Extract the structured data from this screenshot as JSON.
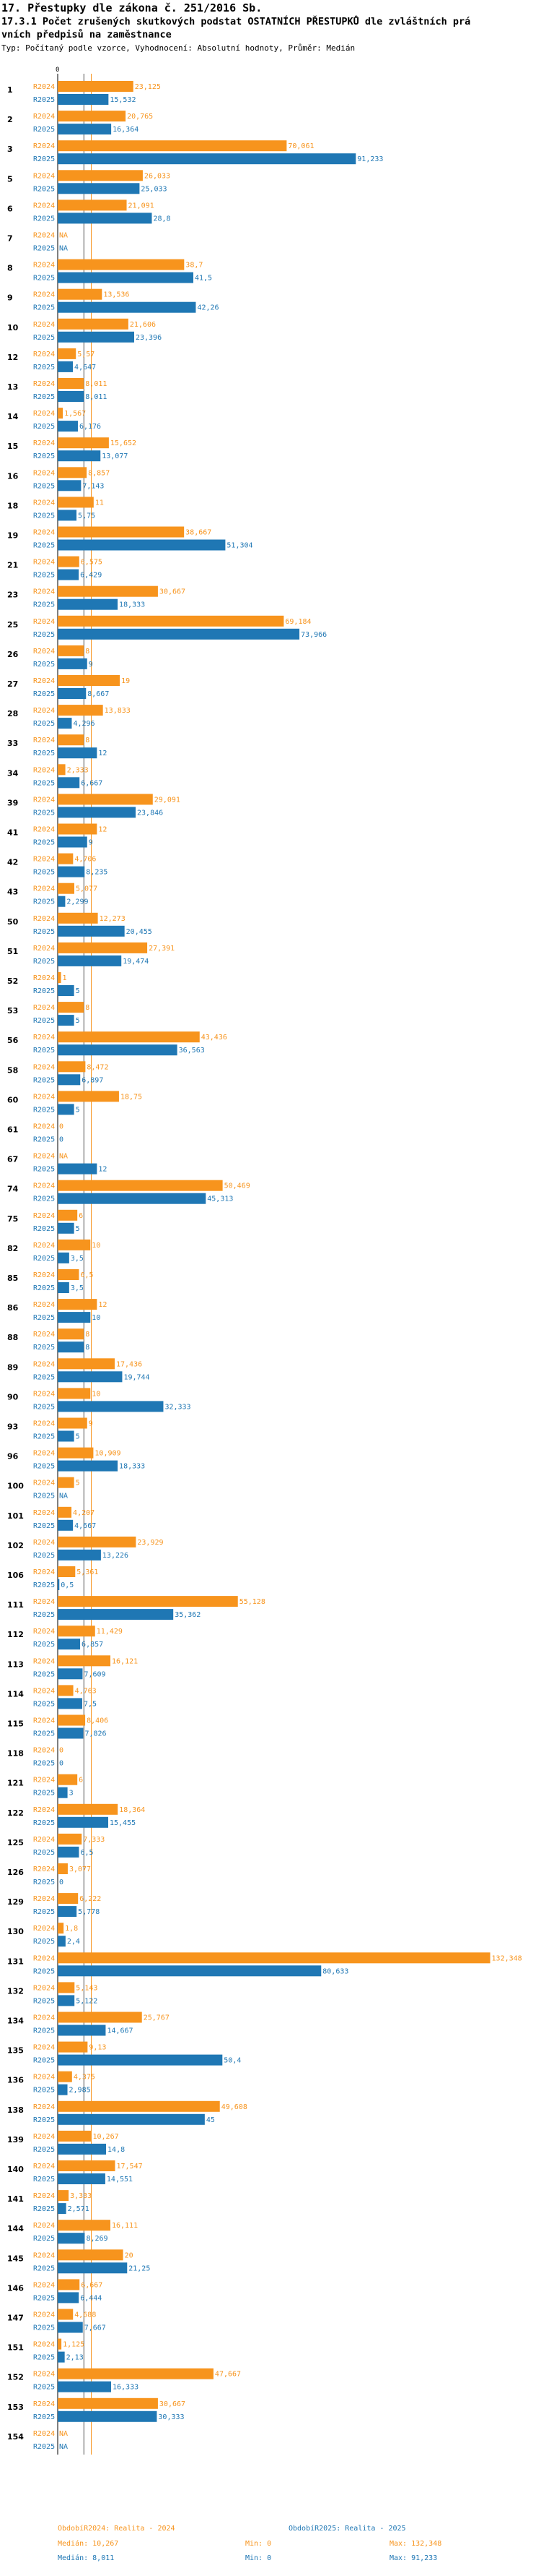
{
  "header": {
    "line1": "17. Přestupky dle zákona č. 251/2016 Sb.",
    "line2": "17.3.1 Počet zrušených skutkových podstat OSTATNÍCH PŘESTUPKŮ dle zvláštních prá",
    "line3": "vních předpisů na zaměstnance",
    "line4": "Typ: Počítaný podle vzorce, Vyhodnocení: Absolutní hodnoty, Průměr: Medián"
  },
  "colors": {
    "r2024": "#f7941d",
    "r2025": "#1f77b4"
  },
  "chart_data": {
    "type": "bar",
    "orientation": "horizontal",
    "series_labels": [
      "R2024",
      "R2025"
    ],
    "axis": {
      "min": 0,
      "max": 132.348,
      "ticks": [
        0
      ]
    },
    "reference_lines": {
      "median_2024": 10.267,
      "median_2025": 8.011
    },
    "categories": [
      {
        "id": "1",
        "r2024": 23.125,
        "r2025": 15.532,
        "t2024": "23,125",
        "t2025": "15,532"
      },
      {
        "id": "2",
        "r2024": 20.765,
        "r2025": 16.364,
        "t2024": "20,765",
        "t2025": "16,364"
      },
      {
        "id": "3",
        "r2024": 70.061,
        "r2025": 91.233,
        "t2024": "70,061",
        "t2025": "91,233"
      },
      {
        "id": "5",
        "r2024": 26.033,
        "r2025": 25.033,
        "t2024": "26,033",
        "t2025": "25,033"
      },
      {
        "id": "6",
        "r2024": 21.091,
        "r2025": 28.8,
        "t2024": "21,091",
        "t2025": "28,8"
      },
      {
        "id": "7",
        "r2024": null,
        "r2025": null,
        "t2024": "NA",
        "t2025": "NA"
      },
      {
        "id": "8",
        "r2024": 38.7,
        "r2025": 41.5,
        "t2024": "38,7",
        "t2025": "41,5"
      },
      {
        "id": "9",
        "r2024": 13.536,
        "r2025": 42.26,
        "t2024": "13,536",
        "t2025": "42,26"
      },
      {
        "id": "10",
        "r2024": 21.606,
        "r2025": 23.396,
        "t2024": "21,606",
        "t2025": "23,396"
      },
      {
        "id": "12",
        "r2024": 5.57,
        "r2025": 4.647,
        "t2024": "5,57",
        "t2025": "4,647"
      },
      {
        "id": "13",
        "r2024": 8.011,
        "r2025": 8.011,
        "t2024": "8,011",
        "t2025": "8,011"
      },
      {
        "id": "14",
        "r2024": 1.567,
        "r2025": 6.176,
        "t2024": "1,567",
        "t2025": "6,176"
      },
      {
        "id": "15",
        "r2024": 15.652,
        "r2025": 13.077,
        "t2024": "15,652",
        "t2025": "13,077"
      },
      {
        "id": "16",
        "r2024": 8.857,
        "r2025": 7.143,
        "t2024": "8,857",
        "t2025": "7,143"
      },
      {
        "id": "18",
        "r2024": 11,
        "r2025": 5.75,
        "t2024": "11",
        "t2025": "5,75"
      },
      {
        "id": "19",
        "r2024": 38.667,
        "r2025": 51.304,
        "t2024": "38,667",
        "t2025": "51,304"
      },
      {
        "id": "21",
        "r2024": 6.575,
        "r2025": 6.429,
        "t2024": "6,575",
        "t2025": "6,429"
      },
      {
        "id": "23",
        "r2024": 30.667,
        "r2025": 18.333,
        "t2024": "30,667",
        "t2025": "18,333"
      },
      {
        "id": "25",
        "r2024": 69.184,
        "r2025": 73.966,
        "t2024": "69,184",
        "t2025": "73,966"
      },
      {
        "id": "26",
        "r2024": 8,
        "r2025": 9,
        "t2024": "8",
        "t2025": "9"
      },
      {
        "id": "27",
        "r2024": 19,
        "r2025": 8.667,
        "t2024": "19",
        "t2025": "8,667"
      },
      {
        "id": "28",
        "r2024": 13.833,
        "r2025": 4.296,
        "t2024": "13,833",
        "t2025": "4,296"
      },
      {
        "id": "33",
        "r2024": 8,
        "r2025": 12,
        "t2024": "8",
        "t2025": "12"
      },
      {
        "id": "34",
        "r2024": 2.333,
        "r2025": 6.667,
        "t2024": "2,333",
        "t2025": "6,667"
      },
      {
        "id": "39",
        "r2024": 29.091,
        "r2025": 23.846,
        "t2024": "29,091",
        "t2025": "23,846"
      },
      {
        "id": "41",
        "r2024": 12,
        "r2025": 9,
        "t2024": "12",
        "t2025": "9"
      },
      {
        "id": "42",
        "r2024": 4.706,
        "r2025": 8.235,
        "t2024": "4,706",
        "t2025": "8,235"
      },
      {
        "id": "43",
        "r2024": 5.077,
        "r2025": 2.299,
        "t2024": "5,077",
        "t2025": "2,299"
      },
      {
        "id": "50",
        "r2024": 12.273,
        "r2025": 20.455,
        "t2024": "12,273",
        "t2025": "20,455"
      },
      {
        "id": "51",
        "r2024": 27.391,
        "r2025": 19.474,
        "t2024": "27,391",
        "t2025": "19,474"
      },
      {
        "id": "52",
        "r2024": 1,
        "r2025": 5,
        "t2024": "1",
        "t2025": "5"
      },
      {
        "id": "53",
        "r2024": 8,
        "r2025": 5,
        "t2024": "8",
        "t2025": "5"
      },
      {
        "id": "56",
        "r2024": 43.436,
        "r2025": 36.563,
        "t2024": "43,436",
        "t2025": "36,563"
      },
      {
        "id": "58",
        "r2024": 8.472,
        "r2025": 6.897,
        "t2024": "8,472",
        "t2025": "6,897"
      },
      {
        "id": "60",
        "r2024": 18.75,
        "r2025": 5,
        "t2024": "18,75",
        "t2025": "5"
      },
      {
        "id": "61",
        "r2024": 0,
        "r2025": 0,
        "t2024": "0",
        "t2025": "0"
      },
      {
        "id": "67",
        "r2024": null,
        "r2025": 12,
        "t2024": "NA",
        "t2025": "12"
      },
      {
        "id": "74",
        "r2024": 50.469,
        "r2025": 45.313,
        "t2024": "50,469",
        "t2025": "45,313"
      },
      {
        "id": "75",
        "r2024": 6,
        "r2025": 5,
        "t2024": "6",
        "t2025": "5"
      },
      {
        "id": "82",
        "r2024": 10,
        "r2025": 3.5,
        "t2024": "10",
        "t2025": "3,5"
      },
      {
        "id": "85",
        "r2024": 6.5,
        "r2025": 3.5,
        "t2024": "6,5",
        "t2025": "3,5"
      },
      {
        "id": "86",
        "r2024": 12,
        "r2025": 10,
        "t2024": "12",
        "t2025": "10"
      },
      {
        "id": "88",
        "r2024": 8,
        "r2025": 8,
        "t2024": "8",
        "t2025": "8"
      },
      {
        "id": "89",
        "r2024": 17.436,
        "r2025": 19.744,
        "t2024": "17,436",
        "t2025": "19,744"
      },
      {
        "id": "90",
        "r2024": 10,
        "r2025": 32.333,
        "t2024": "10",
        "t2025": "32,333"
      },
      {
        "id": "93",
        "r2024": 9,
        "r2025": 5,
        "t2024": "9",
        "t2025": "5"
      },
      {
        "id": "96",
        "r2024": 10.909,
        "r2025": 18.333,
        "t2024": "10,909",
        "t2025": "18,333"
      },
      {
        "id": "100",
        "r2024": 5,
        "r2025": null,
        "t2024": "5",
        "t2025": "NA"
      },
      {
        "id": "101",
        "r2024": 4.207,
        "r2025": 4.667,
        "t2024": "4,207",
        "t2025": "4,667"
      },
      {
        "id": "102",
        "r2024": 23.929,
        "r2025": 13.226,
        "t2024": "23,929",
        "t2025": "13,226"
      },
      {
        "id": "106",
        "r2024": 5.361,
        "r2025": 0.5,
        "t2024": "5,361",
        "t2025": "0,5"
      },
      {
        "id": "111",
        "r2024": 55.128,
        "r2025": 35.362,
        "t2024": "55,128",
        "t2025": "35,362"
      },
      {
        "id": "112",
        "r2024": 11.429,
        "r2025": 6.857,
        "t2024": "11,429",
        "t2025": "6,857"
      },
      {
        "id": "113",
        "r2024": 16.121,
        "r2025": 7.609,
        "t2024": "16,121",
        "t2025": "7,609"
      },
      {
        "id": "114",
        "r2024": 4.763,
        "r2025": 7.5,
        "t2024": "4,763",
        "t2025": "7,5"
      },
      {
        "id": "115",
        "r2024": 8.406,
        "r2025": 7.826,
        "t2024": "8,406",
        "t2025": "7,826"
      },
      {
        "id": "118",
        "r2024": 0,
        "r2025": 0,
        "t2024": "0",
        "t2025": "0"
      },
      {
        "id": "121",
        "r2024": 6,
        "r2025": 3,
        "t2024": "6",
        "t2025": "3"
      },
      {
        "id": "122",
        "r2024": 18.364,
        "r2025": 15.455,
        "t2024": "18,364",
        "t2025": "15,455"
      },
      {
        "id": "125",
        "r2024": 7.333,
        "r2025": 6.5,
        "t2024": "7,333",
        "t2025": "6,5"
      },
      {
        "id": "126",
        "r2024": 3.077,
        "r2025": 0,
        "t2024": "3,077",
        "t2025": "0"
      },
      {
        "id": "129",
        "r2024": 6.222,
        "r2025": 5.778,
        "t2024": "6,222",
        "t2025": "5,778"
      },
      {
        "id": "130",
        "r2024": 1.8,
        "r2025": 2.4,
        "t2024": "1,8",
        "t2025": "2,4"
      },
      {
        "id": "131",
        "r2024": 132.348,
        "r2025": 80.633,
        "t2024": "132,348",
        "t2025": "80,633"
      },
      {
        "id": "132",
        "r2024": 5.143,
        "r2025": 5.122,
        "t2024": "5,143",
        "t2025": "5,122"
      },
      {
        "id": "134",
        "r2024": 25.767,
        "r2025": 14.667,
        "t2024": "25,767",
        "t2025": "14,667"
      },
      {
        "id": "135",
        "r2024": 9.13,
        "r2025": 50.4,
        "t2024": "9,13",
        "t2025": "50,4"
      },
      {
        "id": "136",
        "r2024": 4.375,
        "r2025": 2.985,
        "t2024": "4,375",
        "t2025": "2,985"
      },
      {
        "id": "138",
        "r2024": 49.608,
        "r2025": 45,
        "t2024": "49,608",
        "t2025": "45"
      },
      {
        "id": "139",
        "r2024": 10.267,
        "r2025": 14.8,
        "t2024": "10,267",
        "t2025": "14,8"
      },
      {
        "id": "140",
        "r2024": 17.547,
        "r2025": 14.551,
        "t2024": "17,547",
        "t2025": "14,551"
      },
      {
        "id": "141",
        "r2024": 3.333,
        "r2025": 2.571,
        "t2024": "3,333",
        "t2025": "2,571"
      },
      {
        "id": "144",
        "r2024": 16.111,
        "r2025": 8.269,
        "t2024": "16,111",
        "t2025": "8,269"
      },
      {
        "id": "145",
        "r2024": 20,
        "r2025": 21.25,
        "t2024": "20",
        "t2025": "21,25"
      },
      {
        "id": "146",
        "r2024": 6.667,
        "r2025": 6.444,
        "t2024": "6,667",
        "t2025": "6,444"
      },
      {
        "id": "147",
        "r2024": 4.688,
        "r2025": 7.667,
        "t2024": "4,688",
        "t2025": "7,667"
      },
      {
        "id": "151",
        "r2024": 1.125,
        "r2025": 2.13,
        "t2024": "1,125",
        "t2025": "2,13"
      },
      {
        "id": "152",
        "r2024": 47.667,
        "r2025": 16.333,
        "t2024": "47,667",
        "t2025": "16,333"
      },
      {
        "id": "153",
        "r2024": 30.667,
        "r2025": 30.333,
        "t2024": "30,667",
        "t2025": "30,333"
      },
      {
        "id": "154",
        "r2024": null,
        "r2025": null,
        "t2024": "NA",
        "t2025": "NA"
      }
    ]
  },
  "footer": {
    "legend_2024": "ObdobíR2024: Realita - 2024",
    "legend_2025": "ObdobíR2025: Realita - 2025",
    "median_2024": "Medián: 10,267",
    "median_2025": "Medián: 8,011",
    "min_2024": "Min: 0",
    "min_2025": "Min: 0",
    "max_2024": "Max: 132,348",
    "max_2025": "Max: 91,233"
  }
}
